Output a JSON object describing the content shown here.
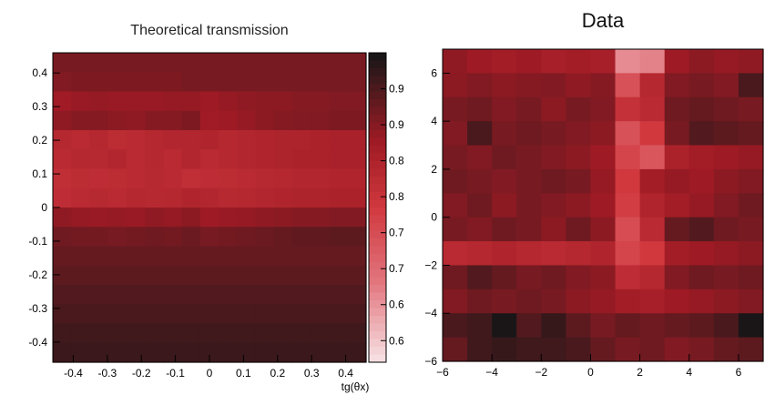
{
  "chart_data": [
    {
      "type": "heatmap",
      "title": "Theoretical transmission",
      "xlabel": "tg(θx)",
      "ylabel": "",
      "xlim": [
        -0.46,
        0.46
      ],
      "ylim": [
        -0.46,
        0.46
      ],
      "x_ticks": [
        "-0.4",
        "-0.3",
        "-0.2",
        "-0.1",
        "0",
        "0.1",
        "0.2",
        "0.3",
        "0.4"
      ],
      "x_tick_values": [
        -0.4,
        -0.3,
        -0.2,
        -0.1,
        0,
        0.1,
        0.2,
        0.3,
        0.4
      ],
      "y_ticks": [
        "0.4",
        "0.3",
        "0.2",
        "0.1",
        "0",
        "-0.1",
        "-0.2",
        "-0.3",
        "-0.4"
      ],
      "y_tick_values": [
        0.4,
        0.3,
        0.2,
        0.1,
        0,
        -0.1,
        -0.2,
        -0.3,
        -0.4
      ],
      "colorbar_ticks": [
        "0.9",
        "0.9",
        "0.8",
        "0.8",
        "0.7",
        "0.7",
        "0.6",
        "0.6"
      ],
      "colorbar_tick_values": [
        0.9,
        0.85,
        0.8,
        0.75,
        0.7,
        0.65,
        0.6,
        0.55
      ],
      "colorbar_range": [
        0.52,
        0.95
      ],
      "grid": false,
      "columns": 17,
      "rows": 16,
      "values": [
        [
          0.8,
          0.8,
          0.8,
          0.8,
          0.8,
          0.8,
          0.8,
          0.8,
          0.8,
          0.8,
          0.8,
          0.8,
          0.8,
          0.8,
          0.8,
          0.8,
          0.8
        ],
        [
          0.78,
          0.79,
          0.79,
          0.79,
          0.79,
          0.79,
          0.79,
          0.8,
          0.8,
          0.8,
          0.8,
          0.8,
          0.8,
          0.8,
          0.8,
          0.8,
          0.8
        ],
        [
          0.71,
          0.73,
          0.74,
          0.73,
          0.73,
          0.73,
          0.74,
          0.74,
          0.72,
          0.74,
          0.75,
          0.76,
          0.76,
          0.77,
          0.77,
          0.78,
          0.78
        ],
        [
          0.75,
          0.77,
          0.77,
          0.76,
          0.75,
          0.77,
          0.77,
          0.79,
          0.71,
          0.72,
          0.74,
          0.76,
          0.77,
          0.78,
          0.78,
          0.79,
          0.79
        ],
        [
          0.62,
          0.6,
          0.62,
          0.59,
          0.6,
          0.62,
          0.63,
          0.63,
          0.64,
          0.62,
          0.63,
          0.64,
          0.65,
          0.65,
          0.66,
          0.67,
          0.67
        ],
        [
          0.6,
          0.62,
          0.61,
          0.63,
          0.6,
          0.62,
          0.6,
          0.63,
          0.6,
          0.62,
          0.63,
          0.64,
          0.65,
          0.66,
          0.66,
          0.67,
          0.67
        ],
        [
          0.57,
          0.59,
          0.58,
          0.59,
          0.6,
          0.61,
          0.6,
          0.57,
          0.58,
          0.59,
          0.6,
          0.61,
          0.62,
          0.63,
          0.63,
          0.64,
          0.64
        ],
        [
          0.58,
          0.6,
          0.61,
          0.6,
          0.62,
          0.61,
          0.62,
          0.64,
          0.63,
          0.61,
          0.62,
          0.63,
          0.64,
          0.65,
          0.65,
          0.66,
          0.66
        ],
        [
          0.75,
          0.74,
          0.73,
          0.74,
          0.73,
          0.75,
          0.74,
          0.76,
          0.72,
          0.73,
          0.74,
          0.75,
          0.76,
          0.77,
          0.77,
          0.78,
          0.78
        ],
        [
          0.82,
          0.81,
          0.81,
          0.8,
          0.81,
          0.82,
          0.81,
          0.83,
          0.8,
          0.81,
          0.82,
          0.83,
          0.84,
          0.85,
          0.85,
          0.86,
          0.86
        ],
        [
          0.84,
          0.84,
          0.84,
          0.84,
          0.84,
          0.84,
          0.84,
          0.84,
          0.84,
          0.84,
          0.84,
          0.84,
          0.84,
          0.84,
          0.84,
          0.84,
          0.84
        ],
        [
          0.86,
          0.86,
          0.86,
          0.86,
          0.86,
          0.86,
          0.86,
          0.86,
          0.86,
          0.86,
          0.86,
          0.86,
          0.86,
          0.86,
          0.86,
          0.86,
          0.86
        ],
        [
          0.88,
          0.88,
          0.88,
          0.88,
          0.88,
          0.88,
          0.88,
          0.88,
          0.88,
          0.88,
          0.88,
          0.88,
          0.88,
          0.88,
          0.88,
          0.88,
          0.88
        ],
        [
          0.9,
          0.9,
          0.9,
          0.9,
          0.9,
          0.9,
          0.9,
          0.9,
          0.9,
          0.9,
          0.9,
          0.9,
          0.9,
          0.9,
          0.9,
          0.9,
          0.9
        ],
        [
          0.92,
          0.92,
          0.92,
          0.92,
          0.92,
          0.92,
          0.92,
          0.92,
          0.92,
          0.92,
          0.92,
          0.92,
          0.92,
          0.92,
          0.92,
          0.92,
          0.92
        ],
        [
          0.93,
          0.93,
          0.93,
          0.93,
          0.93,
          0.93,
          0.93,
          0.93,
          0.93,
          0.93,
          0.93,
          0.93,
          0.93,
          0.93,
          0.93,
          0.93,
          0.93
        ]
      ]
    },
    {
      "type": "heatmap",
      "title": "Data",
      "xlabel": "",
      "ylabel": "",
      "xlim": [
        -6,
        7
      ],
      "ylim": [
        -6,
        7
      ],
      "x_ticks": [
        "−6",
        "−4",
        "−2",
        "0",
        "2",
        "4",
        "6"
      ],
      "x_tick_values": [
        -6,
        -4,
        -2,
        0,
        2,
        4,
        6
      ],
      "y_ticks": [
        "6",
        "4",
        "2",
        "0",
        "−2",
        "−4",
        "−6"
      ],
      "y_tick_values": [
        6,
        4,
        2,
        0,
        -2,
        -4,
        -6
      ],
      "grid": false,
      "columns": 13,
      "rows": 13,
      "values": [
        [
          0.75,
          0.72,
          0.7,
          0.72,
          0.68,
          0.7,
          0.68,
          0.2,
          0.22,
          0.72,
          0.76,
          0.74,
          0.75
        ],
        [
          0.76,
          0.78,
          0.76,
          0.77,
          0.78,
          0.75,
          0.77,
          0.4,
          0.62,
          0.78,
          0.8,
          0.78,
          0.9
        ],
        [
          0.8,
          0.82,
          0.78,
          0.8,
          0.76,
          0.8,
          0.78,
          0.55,
          0.6,
          0.82,
          0.84,
          0.82,
          0.8
        ],
        [
          0.78,
          0.9,
          0.8,
          0.82,
          0.8,
          0.78,
          0.76,
          0.4,
          0.5,
          0.8,
          0.88,
          0.86,
          0.84
        ],
        [
          0.8,
          0.78,
          0.82,
          0.8,
          0.78,
          0.76,
          0.72,
          0.45,
          0.38,
          0.66,
          0.7,
          0.72,
          0.74
        ],
        [
          0.82,
          0.8,
          0.78,
          0.8,
          0.82,
          0.8,
          0.74,
          0.5,
          0.7,
          0.74,
          0.72,
          0.76,
          0.78
        ],
        [
          0.78,
          0.82,
          0.76,
          0.8,
          0.78,
          0.76,
          0.72,
          0.48,
          0.64,
          0.7,
          0.74,
          0.78,
          0.82
        ],
        [
          0.8,
          0.78,
          0.82,
          0.8,
          0.76,
          0.82,
          0.76,
          0.42,
          0.6,
          0.84,
          0.88,
          0.82,
          0.8
        ],
        [
          0.6,
          0.62,
          0.64,
          0.62,
          0.6,
          0.62,
          0.64,
          0.45,
          0.5,
          0.7,
          0.72,
          0.74,
          0.76
        ],
        [
          0.82,
          0.88,
          0.84,
          0.8,
          0.82,
          0.78,
          0.76,
          0.58,
          0.62,
          0.78,
          0.82,
          0.8,
          0.82
        ],
        [
          0.78,
          0.82,
          0.8,
          0.82,
          0.8,
          0.76,
          0.74,
          0.7,
          0.68,
          0.72,
          0.74,
          0.76,
          0.78
        ],
        [
          0.9,
          0.92,
          1.0,
          0.88,
          0.94,
          0.86,
          0.8,
          0.84,
          0.82,
          0.84,
          0.86,
          0.9,
          1.0
        ],
        [
          0.84,
          0.92,
          0.94,
          0.92,
          0.92,
          0.9,
          0.84,
          0.8,
          0.82,
          0.78,
          0.8,
          0.84,
          0.86
        ]
      ]
    }
  ]
}
